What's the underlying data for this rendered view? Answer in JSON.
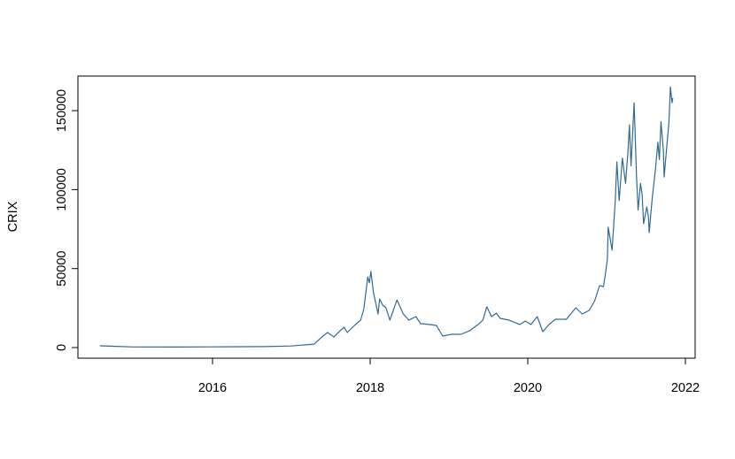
{
  "chart_data": {
    "type": "line",
    "title": "",
    "xlabel": "",
    "ylabel": "CRIX",
    "xlim": [
      2014.4,
      2022.1
    ],
    "ylim": [
      -7000,
      172000
    ],
    "grid": false,
    "line_color": "#2f6a96",
    "x_ticks": [
      2016,
      2018,
      2020,
      2022
    ],
    "x_tick_labels": [
      "2016",
      "2018",
      "2020",
      "2022"
    ],
    "y_ticks": [
      0,
      50000,
      100000,
      150000
    ],
    "y_tick_labels": [
      "0",
      "50000",
      "100000",
      "150000"
    ],
    "series": [
      {
        "x": [
          2014.57,
          2015.0,
          2015.55,
          2016.0,
          2016.67,
          2017.0,
          2017.29,
          2017.4,
          2017.46,
          2017.54,
          2017.63,
          2017.67,
          2017.71,
          2017.8,
          2017.88,
          2017.92,
          2017.97,
          2017.99,
          2018.01,
          2018.04,
          2018.1,
          2018.12,
          2018.16,
          2018.2,
          2018.25,
          2018.34,
          2018.42,
          2018.49,
          2018.58,
          2018.64,
          2018.75,
          2018.84,
          2018.92,
          2019.03,
          2019.15,
          2019.26,
          2019.37,
          2019.43,
          2019.48,
          2019.54,
          2019.6,
          2019.65,
          2019.76,
          2019.9,
          2019.97,
          2020.04,
          2020.12,
          2020.19,
          2020.27,
          2020.35,
          2020.49,
          2020.61,
          2020.69,
          2020.78,
          2020.85,
          2020.91,
          2020.96,
          2020.98,
          2021.01,
          2021.02,
          2021.07,
          2021.11,
          2021.13,
          2021.16,
          2021.2,
          2021.24,
          2021.27,
          2021.29,
          2021.31,
          2021.35,
          2021.38,
          2021.4,
          2021.43,
          2021.45,
          2021.47,
          2021.51,
          2021.53,
          2021.54,
          2021.58,
          2021.62,
          2021.65,
          2021.67,
          2021.69,
          2021.72,
          2021.73,
          2021.76,
          2021.79,
          2021.81,
          2021.83,
          2021.84
        ],
        "y": [
          1100,
          400,
          350,
          450,
          600,
          1000,
          2200,
          7300,
          9500,
          6700,
          11200,
          12900,
          9500,
          14000,
          17400,
          24600,
          44800,
          41000,
          48200,
          35300,
          21300,
          30800,
          26900,
          25200,
          17400,
          30200,
          21300,
          17400,
          19600,
          15100,
          14600,
          14000,
          7300,
          8400,
          8400,
          10600,
          14600,
          17400,
          25800,
          19600,
          21800,
          18500,
          17400,
          14600,
          16800,
          14600,
          19600,
          10100,
          14600,
          17900,
          17900,
          25200,
          21300,
          23500,
          29700,
          39200,
          38600,
          44800,
          56000,
          76200,
          61600,
          93000,
          117600,
          93000,
          120000,
          104000,
          123000,
          141000,
          115000,
          155000,
          108000,
          87000,
          104000,
          97000,
          78400,
          89000,
          83000,
          72800,
          95000,
          113000,
          130000,
          119000,
          143000,
          125000,
          108000,
          125000,
          142000,
          165000,
          155000,
          158000
        ]
      }
    ]
  }
}
